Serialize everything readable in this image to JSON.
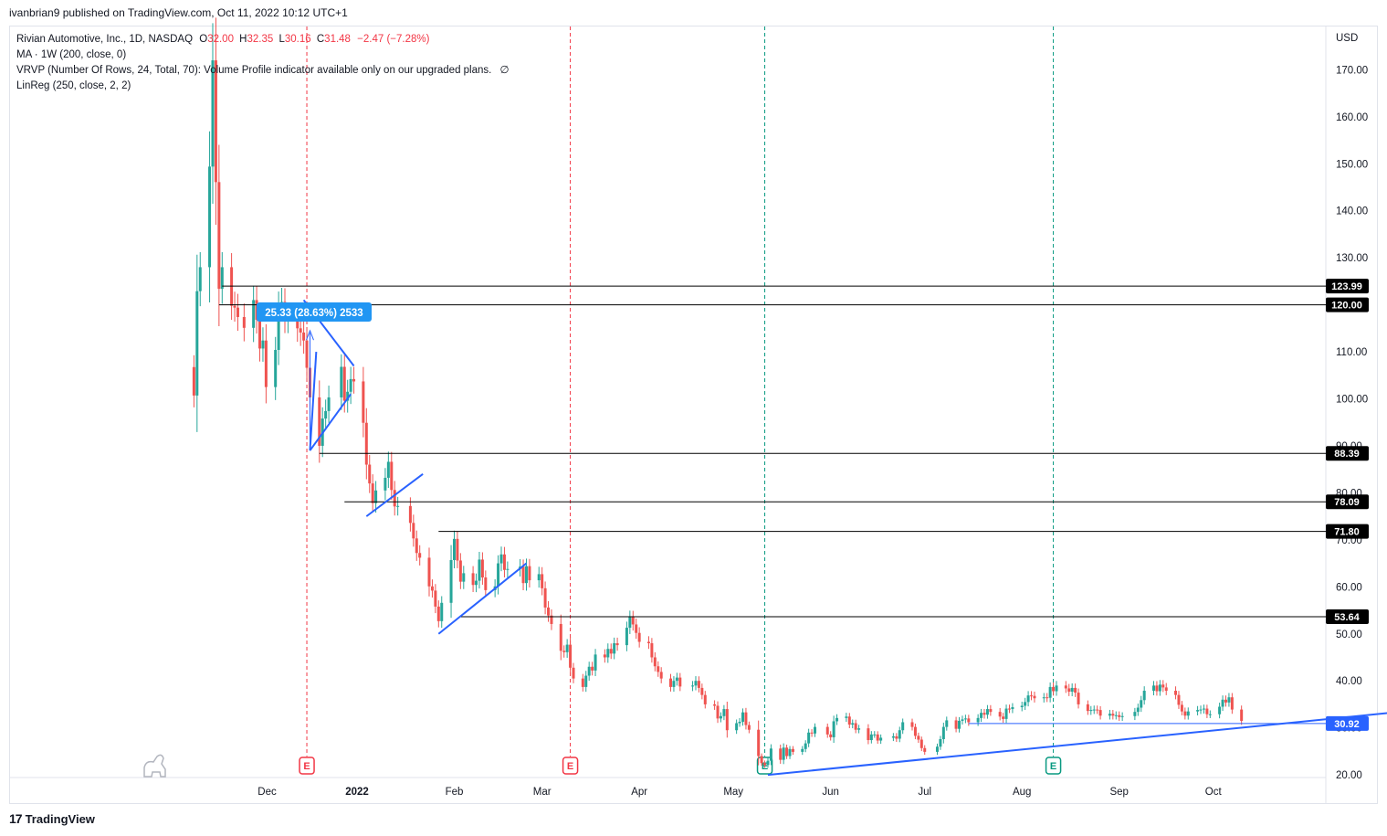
{
  "publisher": "ivanbrian9 published on TradingView.com, Oct 11, 2022 10:12 UTC+1",
  "footer": {
    "brand": "TradingView"
  },
  "legend": {
    "symbol": "Rivian Automotive, Inc., 1D, NASDAQ",
    "o_label": "O",
    "o": "32.00",
    "h_label": "H",
    "h": "32.35",
    "l_label": "L",
    "l": "30.16",
    "c_label": "C",
    "c": "31.48",
    "change": "−2.47 (−7.28%)",
    "ma": "MA · 1W (200, close, 0)",
    "vrvp": "VRVP (Number Of Rows, 24, Total, 70): Volume Profile indicator available only on our upgraded plans.",
    "vrvp_icon": "∅",
    "linreg": "LinReg (250, close, 2, 2)"
  },
  "colors": {
    "up": "#26a69a",
    "down": "#ef5350",
    "tool": "#2962ff",
    "level": "#000000",
    "event_red": "#f23645",
    "event_green": "#089981"
  },
  "measure_label": "25.33 (28.63%) 2533",
  "chart_data": {
    "type": "candlestick",
    "currency": "USD",
    "y_ticks": [
      "170.00",
      "160.00",
      "150.00",
      "140.00",
      "130.00",
      "120.00",
      "110.00",
      "100.00",
      "90.00",
      "80.00",
      "70.00",
      "60.00",
      "50.00",
      "40.00",
      "30.00",
      "20.00"
    ],
    "ylim": [
      20,
      175
    ],
    "x_ticks": [
      "Dec",
      "2022",
      "Feb",
      "Mar",
      "Apr",
      "May",
      "Jun",
      "Jul",
      "Aug",
      "Sep",
      "Oct"
    ],
    "price_levels": [
      {
        "label": "123.99",
        "value": 123.99
      },
      {
        "label": "120.00",
        "value": 120.0
      },
      {
        "label": "88.39",
        "value": 88.39
      },
      {
        "label": "78.09",
        "value": 78.09
      },
      {
        "label": "71.80",
        "value": 71.8
      },
      {
        "label": "53.64",
        "value": 53.64
      },
      {
        "label": "30.92",
        "value": 30.92
      }
    ],
    "events": [
      {
        "date": "2021-12-16",
        "label": "E",
        "kind": "red"
      },
      {
        "date": "2022-03-10",
        "label": "E",
        "kind": "red"
      },
      {
        "date": "2022-05-11",
        "label": "E",
        "kind": "green"
      },
      {
        "date": "2022-08-11",
        "label": "E",
        "kind": "green"
      }
    ],
    "closes": [
      [
        "2021-11-10",
        100.7
      ],
      [
        "2021-11-11",
        122.9
      ],
      [
        "2021-11-12",
        128.0
      ],
      [
        "2021-11-15",
        149.4
      ],
      [
        "2021-11-16",
        172.0
      ],
      [
        "2021-11-17",
        146.1
      ],
      [
        "2021-11-18",
        123.4
      ],
      [
        "2021-11-19",
        128.0
      ],
      [
        "2021-11-22",
        119.8
      ],
      [
        "2021-11-23",
        119.4
      ],
      [
        "2021-11-24",
        117.4
      ],
      [
        "2021-11-26",
        115.1
      ],
      [
        "2021-11-29",
        121.0
      ],
      [
        "2021-11-30",
        116.8
      ],
      [
        "2021-12-01",
        110.7
      ],
      [
        "2021-12-02",
        112.4
      ],
      [
        "2021-12-03",
        102.5
      ],
      [
        "2021-12-06",
        110.4
      ],
      [
        "2021-12-07",
        119.6
      ],
      [
        "2021-12-08",
        120.6
      ],
      [
        "2021-12-09",
        116.9
      ],
      [
        "2021-12-10",
        117.3
      ],
      [
        "2021-12-13",
        115.0
      ],
      [
        "2021-12-14",
        114.1
      ],
      [
        "2021-12-15",
        112.4
      ],
      [
        "2021-12-16",
        106.6
      ],
      [
        "2021-12-17",
        100.3
      ],
      [
        "2021-12-20",
        90.0
      ],
      [
        "2021-12-21",
        95.8
      ],
      [
        "2021-12-22",
        97.4
      ],
      [
        "2021-12-23",
        100.3
      ],
      [
        "2021-12-27",
        106.8
      ],
      [
        "2021-12-28",
        99.6
      ],
      [
        "2021-12-29",
        101.5
      ],
      [
        "2021-12-30",
        104.2
      ],
      [
        "2021-12-31",
        103.7
      ],
      [
        "2022-01-03",
        94.9
      ],
      [
        "2022-01-04",
        86.0
      ],
      [
        "2022-01-05",
        82.0
      ],
      [
        "2022-01-06",
        77.8
      ],
      [
        "2022-01-07",
        80.5
      ],
      [
        "2022-01-10",
        83.2
      ],
      [
        "2022-01-11",
        86.6
      ],
      [
        "2022-01-12",
        80.6
      ],
      [
        "2022-01-13",
        77.1
      ],
      [
        "2022-01-14",
        77.2
      ],
      [
        "2022-01-18",
        73.6
      ],
      [
        "2022-01-19",
        70.3
      ],
      [
        "2022-01-20",
        67.2
      ],
      [
        "2022-01-21",
        66.2
      ],
      [
        "2022-01-24",
        60.1
      ],
      [
        "2022-01-25",
        59.2
      ],
      [
        "2022-01-26",
        55.8
      ],
      [
        "2022-01-27",
        52.7
      ],
      [
        "2022-01-28",
        56.6
      ],
      [
        "2022-01-31",
        65.7
      ],
      [
        "2022-02-01",
        70.2
      ],
      [
        "2022-02-02",
        65.6
      ],
      [
        "2022-02-03",
        61.1
      ],
      [
        "2022-02-04",
        62.9
      ],
      [
        "2022-02-07",
        60.4
      ],
      [
        "2022-02-08",
        61.3
      ],
      [
        "2022-02-09",
        65.8
      ],
      [
        "2022-02-10",
        62.0
      ],
      [
        "2022-02-11",
        59.3
      ],
      [
        "2022-02-14",
        60.1
      ],
      [
        "2022-02-15",
        65.0
      ],
      [
        "2022-02-16",
        66.9
      ],
      [
        "2022-02-17",
        63.6
      ],
      [
        "2022-02-18",
        63.8
      ],
      [
        "2022-02-22",
        64.3
      ],
      [
        "2022-02-23",
        60.8
      ],
      [
        "2022-02-24",
        64.4
      ],
      [
        "2022-02-25",
        61.4
      ],
      [
        "2022-02-28",
        62.7
      ],
      [
        "2022-03-01",
        59.7
      ],
      [
        "2022-03-02",
        55.6
      ],
      [
        "2022-03-03",
        53.9
      ],
      [
        "2022-03-04",
        52.1
      ],
      [
        "2022-03-07",
        46.4
      ],
      [
        "2022-03-08",
        46.1
      ],
      [
        "2022-03-09",
        47.7
      ],
      [
        "2022-03-10",
        42.8
      ],
      [
        "2022-03-11",
        40.5
      ],
      [
        "2022-03-14",
        38.7
      ],
      [
        "2022-03-15",
        41.1
      ],
      [
        "2022-03-16",
        43.0
      ],
      [
        "2022-03-17",
        42.2
      ],
      [
        "2022-03-18",
        45.6
      ],
      [
        "2022-03-21",
        45.0
      ],
      [
        "2022-03-22",
        46.8
      ],
      [
        "2022-03-23",
        45.8
      ],
      [
        "2022-03-24",
        48.0
      ],
      [
        "2022-03-25",
        47.6
      ],
      [
        "2022-03-28",
        51.3
      ],
      [
        "2022-03-29",
        53.6
      ],
      [
        "2022-03-30",
        52.0
      ],
      [
        "2022-03-31",
        50.2
      ],
      [
        "2022-04-01",
        48.3
      ],
      [
        "2022-04-04",
        48.0
      ],
      [
        "2022-04-05",
        45.0
      ],
      [
        "2022-04-06",
        43.1
      ],
      [
        "2022-04-07",
        41.9
      ],
      [
        "2022-04-08",
        40.5
      ],
      [
        "2022-04-11",
        38.7
      ],
      [
        "2022-04-12",
        40.0
      ],
      [
        "2022-04-13",
        40.7
      ],
      [
        "2022-04-14",
        38.8
      ],
      [
        "2022-04-18",
        39.0
      ],
      [
        "2022-04-19",
        40.0
      ],
      [
        "2022-04-20",
        38.5
      ],
      [
        "2022-04-21",
        37.0
      ],
      [
        "2022-04-22",
        35.0
      ],
      [
        "2022-04-25",
        34.7
      ],
      [
        "2022-04-26",
        32.0
      ],
      [
        "2022-04-27",
        32.5
      ],
      [
        "2022-04-28",
        34.0
      ],
      [
        "2022-04-29",
        29.5
      ],
      [
        "2022-05-02",
        31.0
      ],
      [
        "2022-05-03",
        31.3
      ],
      [
        "2022-05-04",
        33.3
      ],
      [
        "2022-05-05",
        30.6
      ],
      [
        "2022-05-06",
        29.6
      ],
      [
        "2022-05-09",
        24.0
      ],
      [
        "2022-05-10",
        22.5
      ],
      [
        "2022-05-11",
        22.1
      ],
      [
        "2022-05-12",
        23.0
      ],
      [
        "2022-05-13",
        25.6
      ],
      [
        "2022-05-16",
        23.2
      ],
      [
        "2022-05-17",
        25.8
      ],
      [
        "2022-05-18",
        24.0
      ],
      [
        "2022-05-19",
        25.5
      ],
      [
        "2022-05-20",
        24.9
      ],
      [
        "2022-05-23",
        25.5
      ],
      [
        "2022-05-24",
        26.7
      ],
      [
        "2022-05-25",
        29.0
      ],
      [
        "2022-05-26",
        28.8
      ],
      [
        "2022-05-27",
        30.2
      ],
      [
        "2022-05-31",
        28.6
      ],
      [
        "2022-06-01",
        28.0
      ],
      [
        "2022-06-02",
        31.4
      ],
      [
        "2022-06-03",
        32.1
      ],
      [
        "2022-06-06",
        32.4
      ],
      [
        "2022-06-07",
        30.7
      ],
      [
        "2022-06-08",
        31.0
      ],
      [
        "2022-06-09",
        29.6
      ],
      [
        "2022-06-10",
        29.9
      ],
      [
        "2022-06-13",
        27.4
      ],
      [
        "2022-06-14",
        28.6
      ],
      [
        "2022-06-15",
        28.6
      ],
      [
        "2022-06-16",
        27.3
      ],
      [
        "2022-06-17",
        27.9
      ],
      [
        "2022-06-21",
        28.2
      ],
      [
        "2022-06-22",
        27.7
      ],
      [
        "2022-06-23",
        29.5
      ],
      [
        "2022-06-24",
        31.2
      ],
      [
        "2022-06-27",
        30.2
      ],
      [
        "2022-06-28",
        28.3
      ],
      [
        "2022-06-29",
        27.5
      ],
      [
        "2022-06-30",
        25.7
      ],
      [
        "2022-07-01",
        24.9
      ],
      [
        "2022-07-05",
        26.0
      ],
      [
        "2022-07-06",
        27.6
      ],
      [
        "2022-07-07",
        30.2
      ],
      [
        "2022-07-08",
        31.6
      ],
      [
        "2022-07-11",
        29.8
      ],
      [
        "2022-07-12",
        31.5
      ],
      [
        "2022-07-13",
        31.8
      ],
      [
        "2022-07-14",
        32.0
      ],
      [
        "2022-07-15",
        31.2
      ],
      [
        "2022-07-18",
        32.1
      ],
      [
        "2022-07-19",
        33.2
      ],
      [
        "2022-07-20",
        32.8
      ],
      [
        "2022-07-21",
        34.0
      ],
      [
        "2022-07-22",
        33.4
      ],
      [
        "2022-07-25",
        32.4
      ],
      [
        "2022-07-26",
        31.9
      ],
      [
        "2022-07-27",
        34.1
      ],
      [
        "2022-07-28",
        34.0
      ],
      [
        "2022-07-29",
        34.4
      ],
      [
        "2022-08-01",
        34.7
      ],
      [
        "2022-08-02",
        35.5
      ],
      [
        "2022-08-03",
        36.9
      ],
      [
        "2022-08-04",
        36.8
      ],
      [
        "2022-08-05",
        36.3
      ],
      [
        "2022-08-08",
        36.5
      ],
      [
        "2022-08-09",
        36.4
      ],
      [
        "2022-08-10",
        38.7
      ],
      [
        "2022-08-11",
        37.8
      ],
      [
        "2022-08-12",
        39.0
      ],
      [
        "2022-08-15",
        38.4
      ],
      [
        "2022-08-16",
        37.7
      ],
      [
        "2022-08-17",
        38.5
      ],
      [
        "2022-08-18",
        37.5
      ],
      [
        "2022-08-19",
        35.0
      ],
      [
        "2022-08-22",
        33.6
      ],
      [
        "2022-08-23",
        33.8
      ],
      [
        "2022-08-24",
        33.9
      ],
      [
        "2022-08-25",
        33.8
      ],
      [
        "2022-08-26",
        32.6
      ],
      [
        "2022-08-29",
        33.0
      ],
      [
        "2022-08-30",
        32.6
      ],
      [
        "2022-08-31",
        32.7
      ],
      [
        "2022-09-01",
        32.3
      ],
      [
        "2022-09-02",
        32.5
      ],
      [
        "2022-09-06",
        33.4
      ],
      [
        "2022-09-07",
        34.3
      ],
      [
        "2022-09-08",
        35.9
      ],
      [
        "2022-09-09",
        37.9
      ],
      [
        "2022-09-12",
        39.0
      ],
      [
        "2022-09-13",
        37.8
      ],
      [
        "2022-09-14",
        39.2
      ],
      [
        "2022-09-15",
        38.6
      ],
      [
        "2022-09-16",
        37.9
      ],
      [
        "2022-09-19",
        37.0
      ],
      [
        "2022-09-20",
        34.9
      ],
      [
        "2022-09-21",
        33.5
      ],
      [
        "2022-09-22",
        32.6
      ],
      [
        "2022-09-23",
        33.5
      ],
      [
        "2022-09-26",
        33.8
      ],
      [
        "2022-09-27",
        33.9
      ],
      [
        "2022-09-28",
        34.1
      ],
      [
        "2022-09-29",
        32.9
      ],
      [
        "2022-09-30",
        32.9
      ],
      [
        "2022-10-03",
        34.5
      ],
      [
        "2022-10-04",
        36.0
      ],
      [
        "2022-10-05",
        35.4
      ],
      [
        "2022-10-06",
        36.5
      ],
      [
        "2022-10-07",
        33.9
      ],
      [
        "2022-10-10",
        31.48
      ]
    ]
  }
}
